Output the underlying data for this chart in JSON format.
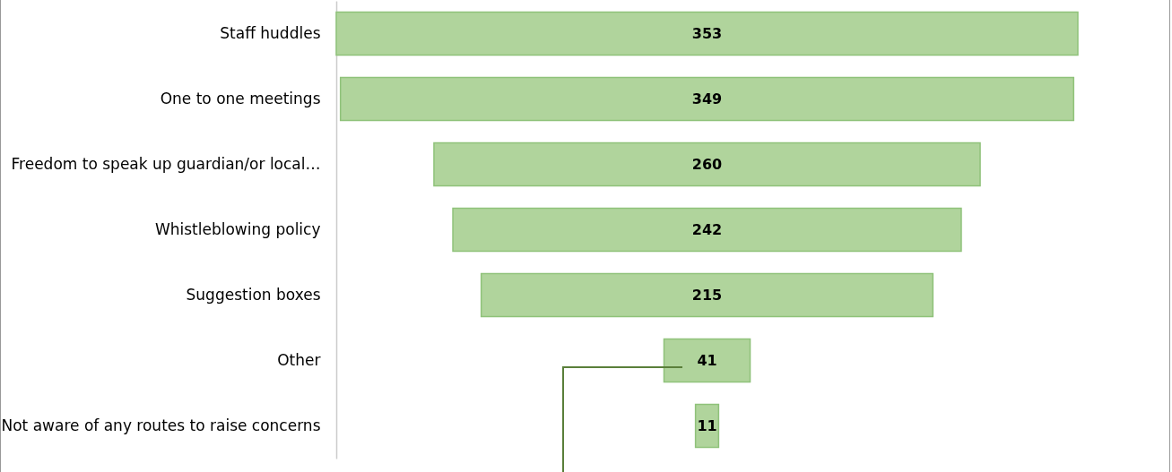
{
  "chart_data": {
    "type": "other",
    "categories": [
      "Staff huddles",
      "One to one meetings",
      "Freedom to speak up guardian/or local…",
      "Whistleblowing policy",
      "Suggestion boxes",
      "Other",
      "Not aware of any routes to raise concerns"
    ],
    "values": [
      353,
      349,
      260,
      242,
      215,
      41,
      11
    ],
    "color": "#b0d49c",
    "data_labels": true
  }
}
